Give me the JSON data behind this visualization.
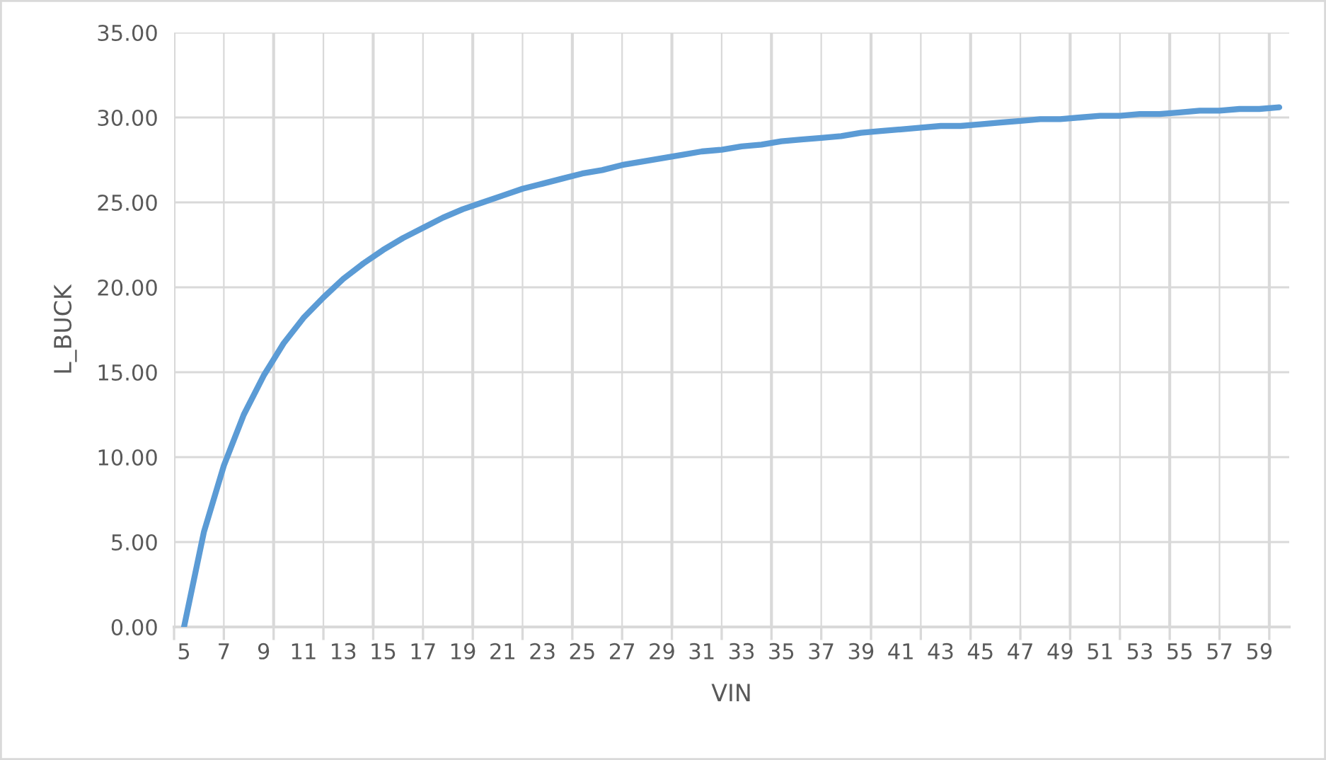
{
  "chart_data": {
    "type": "line",
    "xlabel": "VIN",
    "ylabel": "L_BUCK",
    "categories": [
      "5",
      null,
      "7",
      null,
      "9",
      null,
      "11",
      null,
      "13",
      null,
      "15",
      null,
      "17",
      null,
      "19",
      null,
      "21",
      null,
      "23",
      null,
      "25",
      null,
      "27",
      null,
      "29",
      null,
      "31",
      null,
      "33",
      null,
      "35",
      null,
      "37",
      null,
      "39",
      null,
      "41",
      null,
      "43",
      null,
      "45",
      null,
      "47",
      null,
      "49",
      null,
      "51",
      null,
      "53",
      null,
      "55",
      null,
      "57",
      null,
      "59",
      null
    ],
    "series": [
      {
        "color": "#5b9bd5",
        "values": [
          0,
          5.6,
          9.5,
          12.5,
          14.8,
          16.7,
          18.2,
          19.4,
          20.5,
          21.4,
          22.2,
          22.9,
          23.5,
          24.1,
          24.6,
          25.0,
          25.4,
          25.8,
          26.1,
          26.4,
          26.7,
          26.9,
          27.2,
          27.4,
          27.6,
          27.8,
          28.0,
          28.1,
          28.3,
          28.4,
          28.6,
          28.7,
          28.8,
          28.9,
          29.1,
          29.2,
          29.3,
          29.4,
          29.5,
          29.5,
          29.6,
          29.7,
          29.8,
          29.9,
          29.9,
          30.0,
          30.1,
          30.1,
          30.2,
          30.2,
          30.3,
          30.4,
          30.4,
          30.5,
          30.5,
          30.6
        ]
      }
    ],
    "ylim": [
      0,
      35
    ],
    "yticks": [
      {
        "value": 0,
        "label": "0.00"
      },
      {
        "value": 5,
        "label": "5.00"
      },
      {
        "value": 10,
        "label": "10.00"
      },
      {
        "value": 15,
        "label": "15.00"
      },
      {
        "value": 20,
        "label": "20.00"
      },
      {
        "value": 25,
        "label": "25.00"
      },
      {
        "value": 30,
        "label": "30.00"
      },
      {
        "value": 35,
        "label": "35.00"
      }
    ],
    "grid": true,
    "marker": "none",
    "line_style": "solid"
  }
}
